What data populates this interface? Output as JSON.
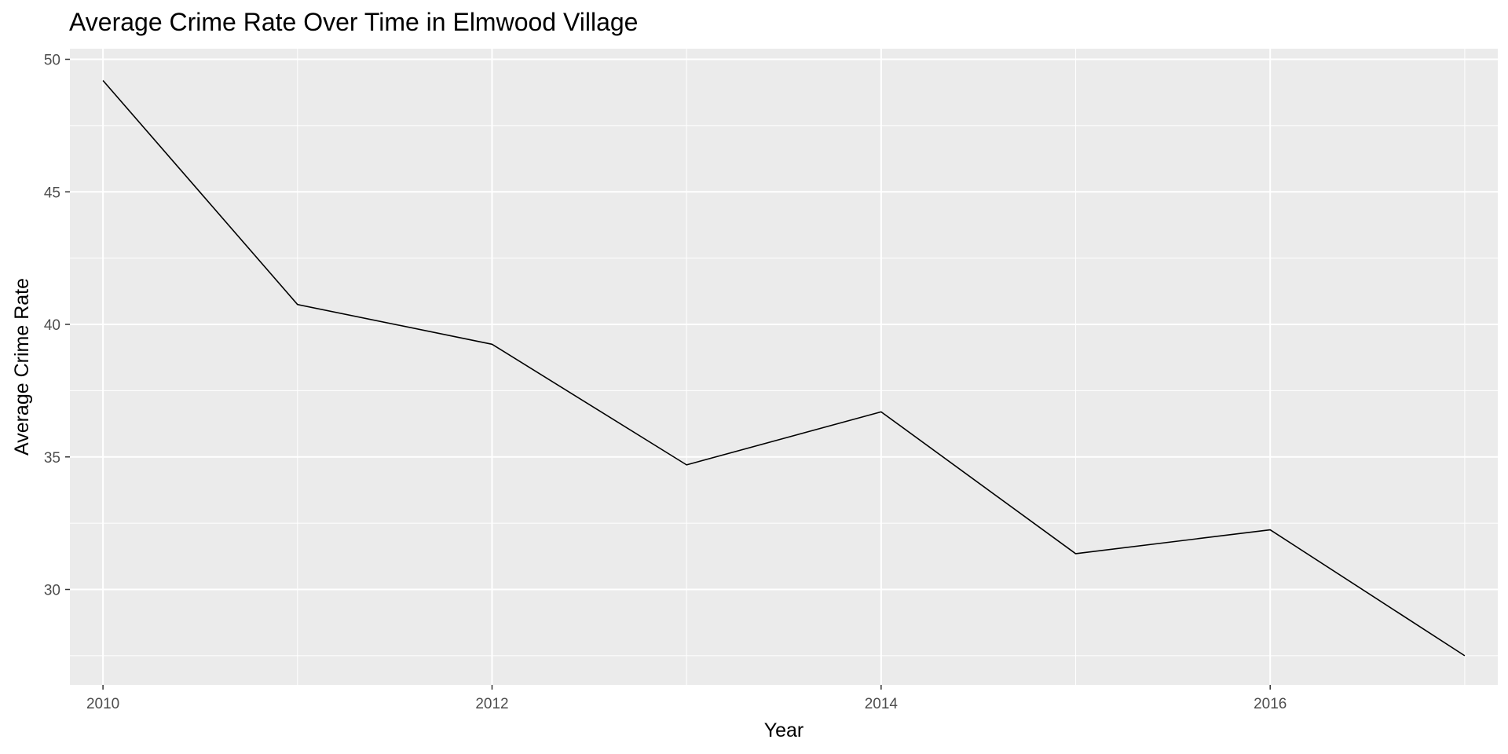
{
  "chart_data": {
    "type": "line",
    "title": "Average Crime Rate Over Time in Elmwood Village",
    "xlabel": "Year",
    "ylabel": "Average Crime Rate",
    "x": [
      2010,
      2011,
      2012,
      2013,
      2014,
      2015,
      2016,
      2017
    ],
    "series": [
      {
        "values": [
          49.2,
          40.75,
          39.25,
          34.7,
          36.7,
          31.35,
          32.25,
          27.5
        ]
      }
    ],
    "x_ticks": [
      2010,
      2012,
      2014,
      2016
    ],
    "y_ticks": [
      30,
      35,
      40,
      45,
      50
    ],
    "xlim": [
      2009.83,
      2017.17
    ],
    "ylim": [
      26.4,
      50.4
    ],
    "grid": true,
    "colors": {
      "panel_background": "#ebebeb",
      "grid": "#ffffff",
      "line": "#000000",
      "tick_label": "#4d4d4d",
      "tick_mark": "#333333"
    }
  }
}
